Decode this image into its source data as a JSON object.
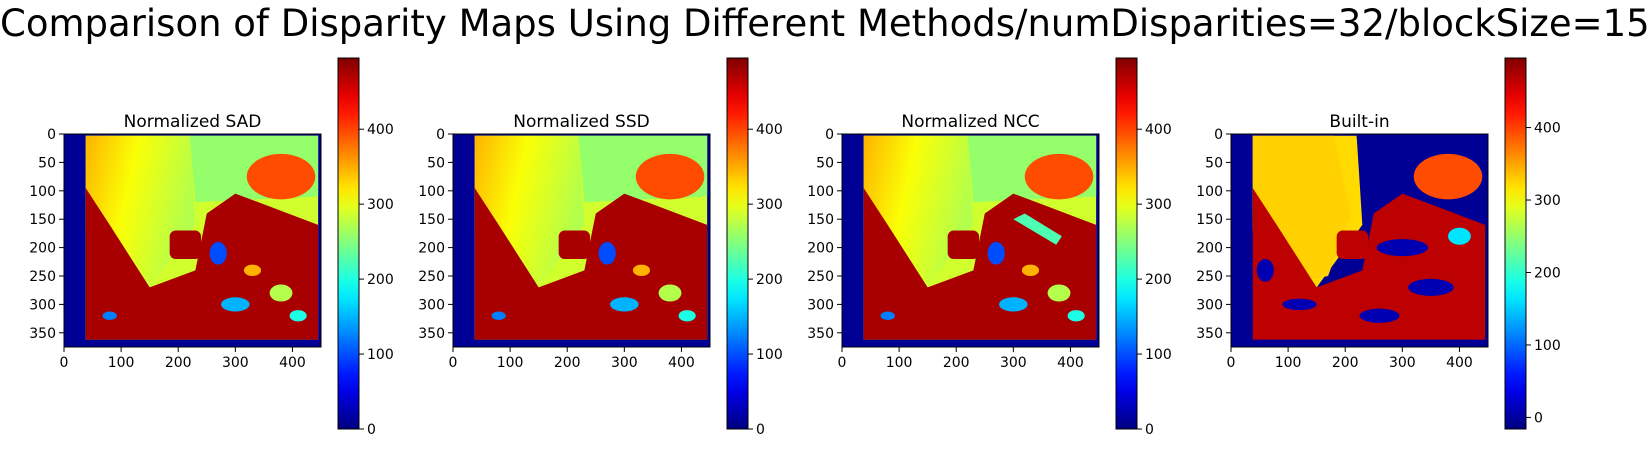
{
  "suptitle": "Comparison of Disparity Maps Using Different Methods/numDisparities=32/blockSize=15",
  "chart_data": [
    {
      "type": "heatmap",
      "title": "Normalized SAD",
      "xlabel": "",
      "ylabel": "",
      "xlim": [
        0,
        450
      ],
      "ylim": [
        375,
        0
      ],
      "xticks": [
        "0",
        "100",
        "200",
        "300",
        "400"
      ],
      "yticks": [
        "0",
        "50",
        "100",
        "150",
        "200",
        "250",
        "300",
        "350"
      ],
      "colormap": "jet",
      "colorbar": {
        "range": [
          0,
          495
        ],
        "ticks": [
          "0",
          "100",
          "200",
          "300",
          "400"
        ]
      }
    },
    {
      "type": "heatmap",
      "title": "Normalized SSD",
      "xlabel": "",
      "ylabel": "",
      "xlim": [
        0,
        450
      ],
      "ylim": [
        375,
        0
      ],
      "xticks": [
        "0",
        "100",
        "200",
        "300",
        "400"
      ],
      "yticks": [
        "0",
        "50",
        "100",
        "150",
        "200",
        "250",
        "300",
        "350"
      ],
      "colormap": "jet",
      "colorbar": {
        "range": [
          0,
          495
        ],
        "ticks": [
          "0",
          "100",
          "200",
          "300",
          "400"
        ]
      }
    },
    {
      "type": "heatmap",
      "title": "Normalized NCC",
      "xlabel": "",
      "ylabel": "",
      "xlim": [
        0,
        450
      ],
      "ylim": [
        375,
        0
      ],
      "xticks": [
        "0",
        "100",
        "200",
        "300",
        "400"
      ],
      "yticks": [
        "0",
        "50",
        "100",
        "150",
        "200",
        "250",
        "300",
        "350"
      ],
      "colormap": "jet",
      "colorbar": {
        "range": [
          0,
          495
        ],
        "ticks": [
          "0",
          "100",
          "200",
          "300",
          "400"
        ]
      }
    },
    {
      "type": "heatmap",
      "title": "Built-in",
      "xlabel": "",
      "ylabel": "",
      "xlim": [
        0,
        450
      ],
      "ylim": [
        375,
        0
      ],
      "xticks": [
        "0",
        "100",
        "200",
        "300",
        "400"
      ],
      "yticks": [
        "0",
        "50",
        "100",
        "150",
        "200",
        "250",
        "300",
        "350"
      ],
      "colormap": "jet",
      "colorbar": {
        "range": [
          -16,
          496
        ],
        "ticks": [
          "0",
          "100",
          "200",
          "300",
          "400"
        ]
      }
    }
  ]
}
